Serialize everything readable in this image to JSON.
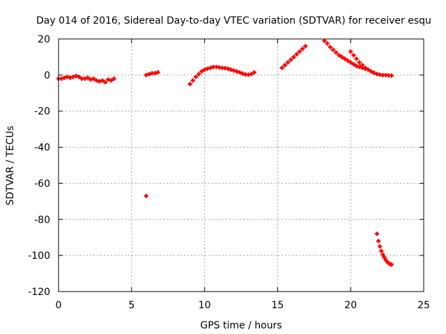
{
  "chart_data": {
    "type": "scatter",
    "title": "Day 014 of 2016, Sidereal Day-to-day VTEC variation (SDTVAR) for receiver esqu",
    "xlabel": "GPS time / hours",
    "ylabel": "SDTVAR / TECUs",
    "xlim": [
      0,
      25
    ],
    "ylim": [
      -120,
      20
    ],
    "xticks": [
      0,
      5,
      10,
      15,
      20,
      25
    ],
    "yticks": [
      -120,
      -100,
      -80,
      -60,
      -40,
      -20,
      0,
      20
    ],
    "grid": true,
    "legend": "none",
    "marker": "plus",
    "color": "#ff0000",
    "series": [
      {
        "name": "SDTVAR",
        "x": [
          0.0,
          0.2,
          0.4,
          0.6,
          0.8,
          1.0,
          1.2,
          1.4,
          1.6,
          1.8,
          2.0,
          2.2,
          2.4,
          2.6,
          2.8,
          3.0,
          3.2,
          3.4,
          3.6,
          3.8,
          6.0,
          6.2,
          6.4,
          6.6,
          6.8,
          6.0,
          9.0,
          9.2,
          9.4,
          9.6,
          9.8,
          10.0,
          10.2,
          10.4,
          10.6,
          10.8,
          11.0,
          11.2,
          11.4,
          11.6,
          11.8,
          12.0,
          12.2,
          12.4,
          12.6,
          12.8,
          13.0,
          13.2,
          13.4,
          15.3,
          15.5,
          15.7,
          15.9,
          16.1,
          16.3,
          16.5,
          16.7,
          16.9,
          18.2,
          18.4,
          18.6,
          18.8,
          19.0,
          19.2,
          19.4,
          19.6,
          19.8,
          20.0,
          20.2,
          20.4,
          20.6,
          20.8,
          21.0,
          20.0,
          20.2,
          20.4,
          20.6,
          20.8,
          21.0,
          21.2,
          21.4,
          21.6,
          21.8,
          22.0,
          22.2,
          22.4,
          22.6,
          22.8,
          21.8,
          21.9,
          22.0,
          22.1,
          22.2,
          22.3,
          22.4,
          22.5,
          22.6,
          22.7,
          22.8
        ],
        "y": [
          -2,
          -2,
          -1.5,
          -1,
          -1.5,
          -1,
          -0.5,
          -1,
          -2,
          -2,
          -1.5,
          -2.5,
          -2,
          -3,
          -3.5,
          -3,
          -4,
          -2.5,
          -3,
          -2,
          0,
          0.5,
          1,
          1,
          1.5,
          -67,
          -5,
          -3,
          -1,
          0.5,
          2,
          3,
          3.5,
          4,
          4.5,
          4.5,
          4.2,
          4,
          3.8,
          3.5,
          3,
          2.5,
          2,
          1.5,
          0.8,
          0.3,
          0.2,
          0.5,
          1.5,
          4,
          5.5,
          7,
          8.5,
          10,
          11.5,
          13,
          14.5,
          16,
          19,
          17.5,
          15.5,
          14,
          12.5,
          11,
          10,
          9,
          8,
          7,
          6,
          5,
          4.5,
          4,
          3.5,
          13,
          11,
          9,
          7,
          5.5,
          4,
          3,
          2,
          1.2,
          0.6,
          0.2,
          0,
          0,
          -0.2,
          -0.3,
          -88,
          -92,
          -95,
          -97.5,
          -99.5,
          -101,
          -102.5,
          -103.5,
          -104.3,
          -104.8,
          -105
        ]
      }
    ]
  }
}
